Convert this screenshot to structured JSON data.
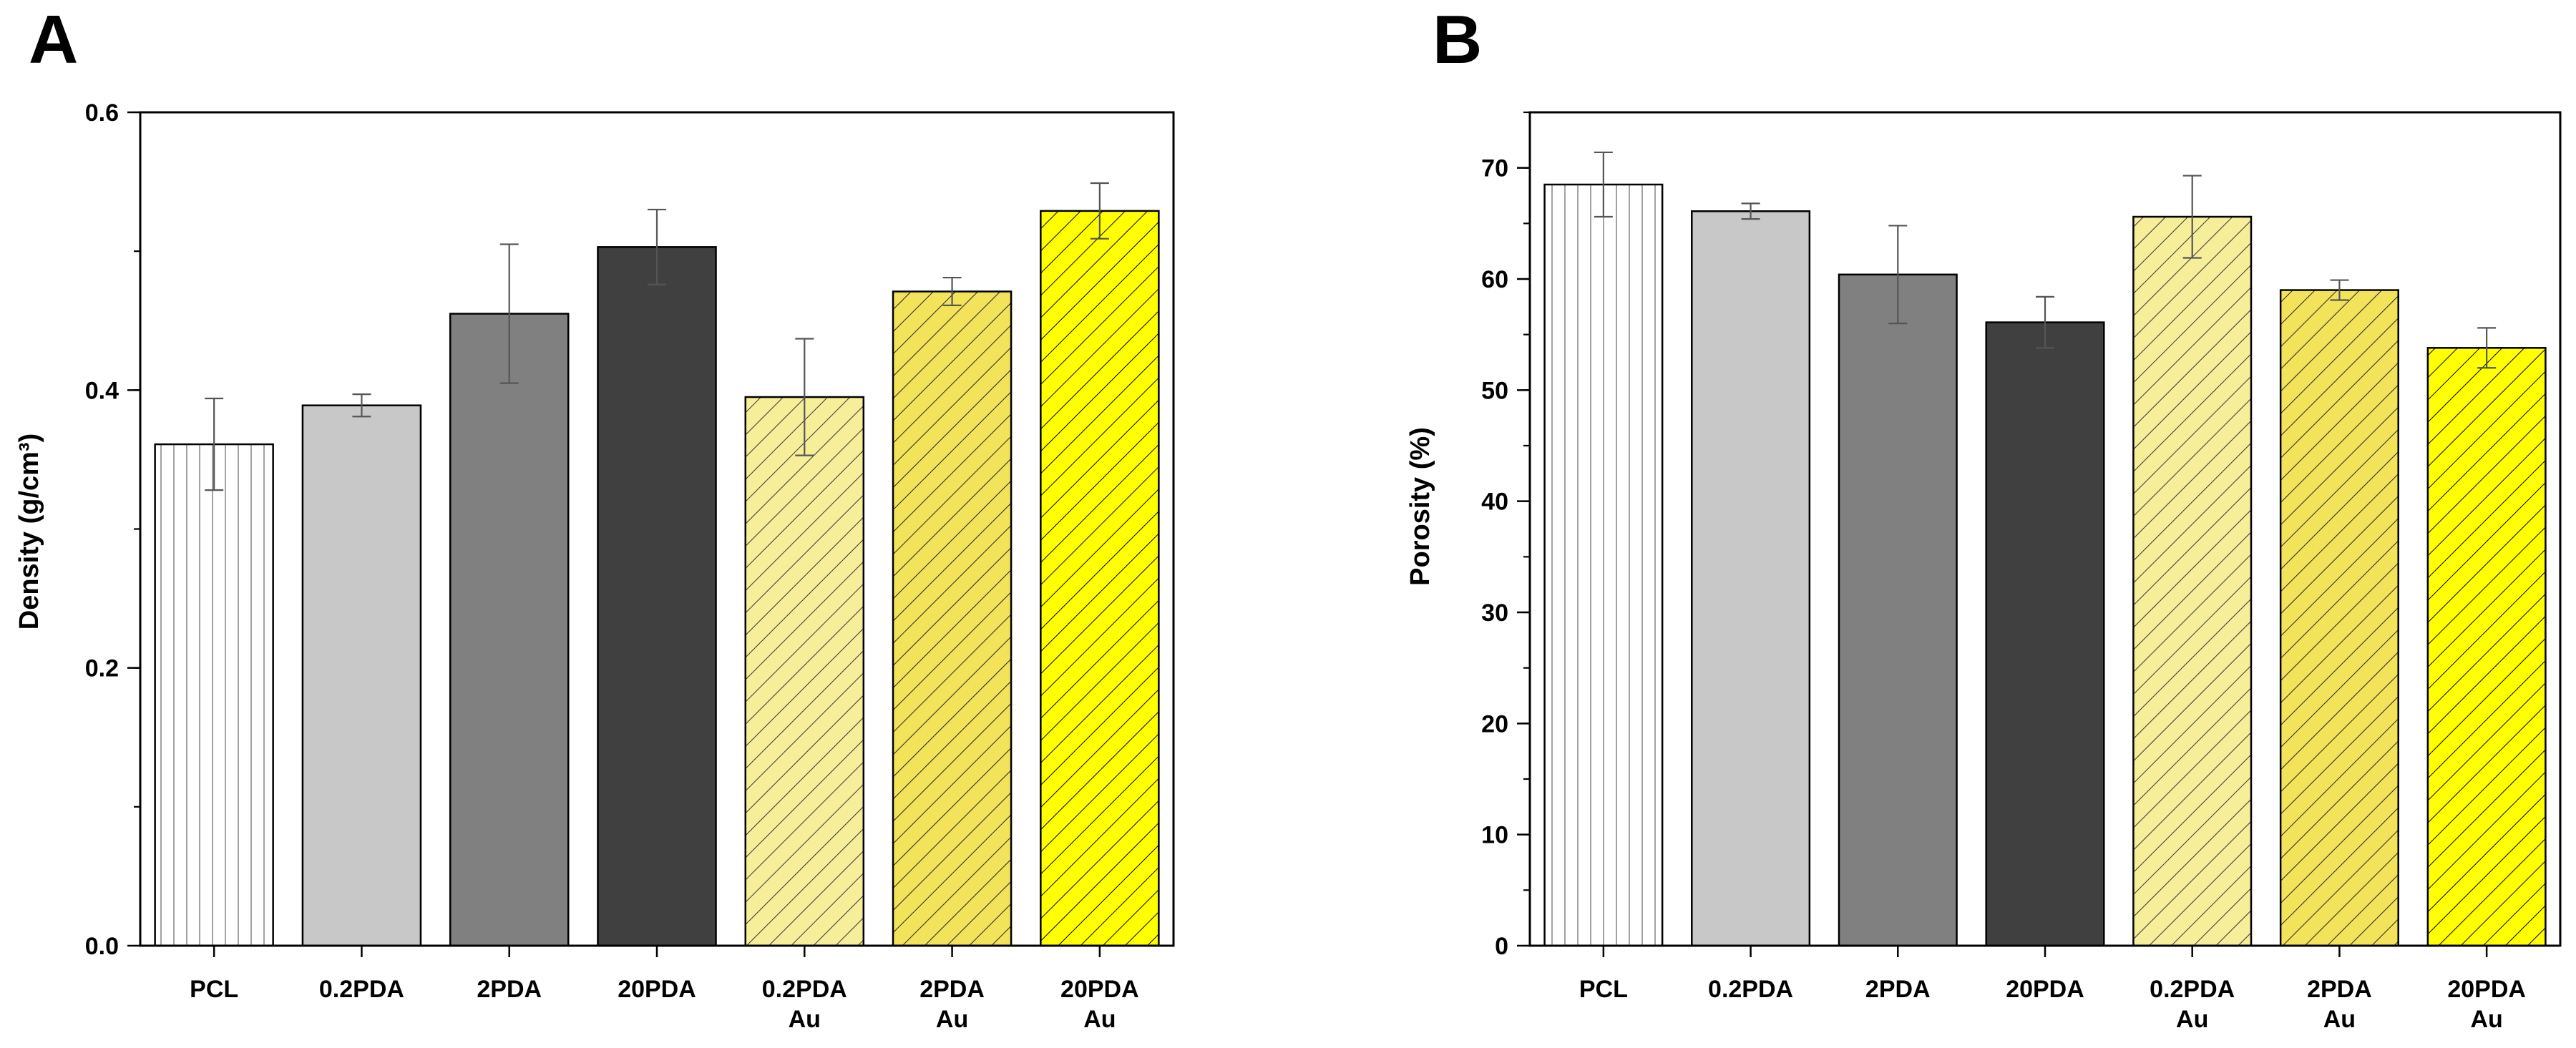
{
  "chart_data": [
    {
      "panel_label": "A",
      "type": "bar",
      "categories": [
        {
          "line1": "PCL",
          "line2": ""
        },
        {
          "line1": "0.2PDA",
          "line2": ""
        },
        {
          "line1": "2PDA",
          "line2": ""
        },
        {
          "line1": "20PDA",
          "line2": ""
        },
        {
          "line1": "0.2PDA",
          "line2": "Au"
        },
        {
          "line1": "2PDA",
          "line2": "Au"
        },
        {
          "line1": "20PDA",
          "line2": "Au"
        }
      ],
      "values": [
        0.361,
        0.389,
        0.455,
        0.503,
        0.395,
        0.471,
        0.529
      ],
      "errors": [
        0.033,
        0.008,
        0.05,
        0.027,
        0.042,
        0.01,
        0.02
      ],
      "ylabel": "Density (g/cm³)",
      "ylim": [
        0,
        0.6
      ],
      "yticks": [
        {
          "value": 0.0,
          "label": "0.0"
        },
        {
          "value": 0.2,
          "label": "0.2"
        },
        {
          "value": 0.4,
          "label": "0.4"
        },
        {
          "value": 0.6,
          "label": "0.6"
        }
      ],
      "minor_tick_step": 0.1,
      "grid": false,
      "bar_styles": [
        {
          "fill": "#ffffff",
          "pattern": "vertical",
          "pattern_color": "#8a8a8a"
        },
        {
          "fill": "#c8c8c8",
          "pattern": "none",
          "pattern_color": ""
        },
        {
          "fill": "#808080",
          "pattern": "none",
          "pattern_color": ""
        },
        {
          "fill": "#404040",
          "pattern": "none",
          "pattern_color": ""
        },
        {
          "fill": "#f7ee9a",
          "pattern": "diagonal",
          "pattern_color": "#333333"
        },
        {
          "fill": "#f2e35a",
          "pattern": "diagonal",
          "pattern_color": "#222222"
        },
        {
          "fill": "#ffff00",
          "pattern": "diagonal",
          "pattern_color": "#000000"
        }
      ]
    },
    {
      "panel_label": "B",
      "type": "bar",
      "categories": [
        {
          "line1": "PCL",
          "line2": ""
        },
        {
          "line1": "0.2PDA",
          "line2": ""
        },
        {
          "line1": "2PDA",
          "line2": ""
        },
        {
          "line1": "20PDA",
          "line2": ""
        },
        {
          "line1": "0.2PDA",
          "line2": "Au"
        },
        {
          "line1": "2PDA",
          "line2": "Au"
        },
        {
          "line1": "20PDA",
          "line2": "Au"
        }
      ],
      "values": [
        68.5,
        66.1,
        60.4,
        56.1,
        65.6,
        59.0,
        53.8
      ],
      "errors": [
        2.9,
        0.7,
        4.4,
        2.3,
        3.7,
        0.9,
        1.8
      ],
      "ylabel": "Porosity (%)",
      "ylim": [
        0,
        75
      ],
      "yticks": [
        {
          "value": 0,
          "label": "0"
        },
        {
          "value": 10,
          "label": "10"
        },
        {
          "value": 20,
          "label": "20"
        },
        {
          "value": 30,
          "label": "30"
        },
        {
          "value": 40,
          "label": "40"
        },
        {
          "value": 50,
          "label": "50"
        },
        {
          "value": 60,
          "label": "60"
        },
        {
          "value": 70,
          "label": "70"
        }
      ],
      "minor_tick_step": 5,
      "grid": false,
      "bar_styles": [
        {
          "fill": "#ffffff",
          "pattern": "vertical",
          "pattern_color": "#8a8a8a"
        },
        {
          "fill": "#c8c8c8",
          "pattern": "none",
          "pattern_color": ""
        },
        {
          "fill": "#808080",
          "pattern": "none",
          "pattern_color": ""
        },
        {
          "fill": "#404040",
          "pattern": "none",
          "pattern_color": ""
        },
        {
          "fill": "#f7ee9a",
          "pattern": "diagonal",
          "pattern_color": "#333333"
        },
        {
          "fill": "#f2e35a",
          "pattern": "diagonal",
          "pattern_color": "#222222"
        },
        {
          "fill": "#ffff00",
          "pattern": "diagonal",
          "pattern_color": "#000000"
        }
      ]
    }
  ]
}
